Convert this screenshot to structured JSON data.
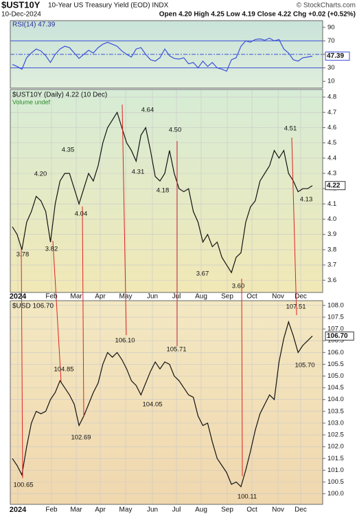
{
  "header": {
    "symbol": "$UST10Y",
    "name": "10-Year US Treasury Yield (EOD) INDX",
    "credit": "© StockCharts.com",
    "date": "10-Dec-2024",
    "quote": "Open 4.20 High 4.25 Low 4.19 Close 4.22 Chg +0.02 (+0.52%)"
  },
  "chart_data": [
    {
      "type": "line",
      "title": "RSI(14) 47.39",
      "color": "#3a4fd8",
      "ylim": [
        0,
        100
      ],
      "yticks": [
        90,
        70,
        50,
        30,
        10
      ],
      "bands": [
        30,
        70
      ],
      "midline": 50,
      "last_value_label": "47.39",
      "values": [
        35,
        32,
        28,
        45,
        52,
        58,
        55,
        48,
        38,
        50,
        58,
        62,
        60,
        52,
        44,
        50,
        56,
        52,
        60,
        65,
        68,
        65,
        62,
        55,
        50,
        46,
        58,
        60,
        50,
        42,
        40,
        45,
        58,
        48,
        44,
        43,
        45,
        36,
        38,
        30,
        40,
        32,
        38,
        30,
        28,
        25,
        42,
        45,
        62,
        70,
        68,
        72,
        73,
        71,
        74,
        70,
        72,
        58,
        52,
        42,
        40,
        45,
        46,
        47.39
      ]
    },
    {
      "type": "line",
      "title": "$UST10Y (Daily) 4.22 (10 Dec)",
      "subtitle": "Volume undef",
      "color": "#111111",
      "ylim": [
        3.52,
        4.85
      ],
      "yticks": [
        3.6,
        3.7,
        3.8,
        3.9,
        {
          "value": 4,
          "label": "4.0"
        },
        4.1,
        4.2,
        4.3,
        4.4,
        4.5,
        4.6,
        4.7,
        4.8
      ],
      "grid": true,
      "last_value_label": "4.22",
      "x_labels": [
        "2024",
        "Feb",
        "Mar",
        "Apr",
        "May",
        "Jun",
        "Jul",
        "Aug",
        "Sep",
        "Oct",
        "Nov",
        "Dec"
      ],
      "annotations": [
        "3.78",
        "3.82",
        "4.20",
        "4.35",
        "4.04",
        "4.64",
        "4.31",
        "4.18",
        "4.50",
        "3.67",
        "3.60",
        "4.51",
        "4.13"
      ],
      "values": [
        3.95,
        3.9,
        3.8,
        3.98,
        4.05,
        4.15,
        4.12,
        4.05,
        3.85,
        4.1,
        4.25,
        4.3,
        4.3,
        4.2,
        4.1,
        4.2,
        4.3,
        4.25,
        4.35,
        4.5,
        4.6,
        4.65,
        4.7,
        4.6,
        4.5,
        4.45,
        4.38,
        4.55,
        4.6,
        4.45,
        4.28,
        4.25,
        4.3,
        4.45,
        4.3,
        4.2,
        4.18,
        4.2,
        4.05,
        3.98,
        3.85,
        3.9,
        3.82,
        3.85,
        3.75,
        3.7,
        3.65,
        3.75,
        3.78,
        3.98,
        4.08,
        4.12,
        4.25,
        4.3,
        4.35,
        4.45,
        4.4,
        4.45,
        4.3,
        4.25,
        4.18,
        4.2,
        4.2,
        4.22
      ]
    },
    {
      "type": "line",
      "title": "$USD 106.70",
      "color": "#111111",
      "ylim": [
        99.55,
        108.2
      ],
      "yticks": [
        {
          "value": 100,
          "label": "100.0"
        },
        100.5,
        {
          "value": 101,
          "label": "101.0"
        },
        101.5,
        {
          "value": 102,
          "label": "102.0"
        },
        102.5,
        {
          "value": 103,
          "label": "103.0"
        },
        103.5,
        {
          "value": 104,
          "label": "104.0"
        },
        104.5,
        {
          "value": 105,
          "label": "105.0"
        },
        105.5,
        {
          "value": 106,
          "label": "106.0"
        },
        106.5,
        {
          "value": 107,
          "label": "107.0"
        },
        107.5,
        {
          "value": 108,
          "label": "108.0"
        }
      ],
      "grid": true,
      "last_value_label": "106.70",
      "x_labels": [
        "2024",
        "Feb",
        "Mar",
        "Apr",
        "May",
        "Jun",
        "Jul",
        "Aug",
        "Sep",
        "Oct",
        "Nov",
        "Dec"
      ],
      "annotations": [
        "100.65",
        "104.85",
        "102.69",
        "106.10",
        "104.05",
        "105.71",
        "100.11",
        "107.51",
        "105.70"
      ],
      "values": [
        101.5,
        101.2,
        100.8,
        102,
        103,
        103.5,
        103.4,
        103.5,
        104,
        104.3,
        104.8,
        104.5,
        104.2,
        103.8,
        102.9,
        103.3,
        103.8,
        104.3,
        104.7,
        105.5,
        106,
        105.8,
        106,
        105.7,
        105.3,
        104.8,
        104.6,
        104.2,
        104.7,
        105.2,
        105.6,
        105.3,
        105.6,
        105.5,
        105,
        104.8,
        104.5,
        104.2,
        104.1,
        103.3,
        102.9,
        103,
        102.2,
        101.5,
        101.2,
        100.9,
        100.4,
        100.5,
        100.3,
        101,
        101.8,
        102.7,
        103.4,
        103.8,
        104.2,
        104,
        105.6,
        106.6,
        107.3,
        106.7,
        106,
        106.3,
        106.5,
        106.7
      ]
    }
  ]
}
